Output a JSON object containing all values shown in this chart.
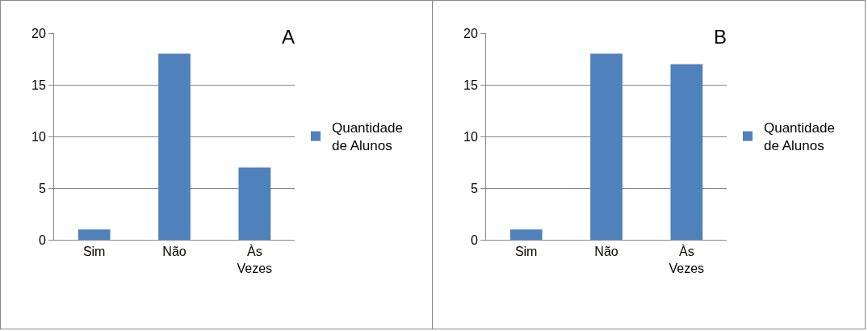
{
  "chart_data": [
    {
      "type": "bar",
      "title": "A",
      "categories": [
        "Sim",
        "Não",
        "Às Vezes"
      ],
      "series": [
        {
          "name": "Quantidade de Alunos",
          "color": "#4f81bd",
          "values": [
            1,
            18,
            7
          ]
        }
      ],
      "ylim": [
        0,
        20
      ],
      "yticks": [
        0,
        5,
        10,
        15,
        20
      ],
      "grid": "y",
      "legend": "right"
    },
    {
      "type": "bar",
      "title": "B",
      "categories": [
        "Sim",
        "Não",
        "Às Vezes"
      ],
      "series": [
        {
          "name": "Quantidade de Alunos",
          "color": "#4f81bd",
          "values": [
            1,
            18,
            17
          ]
        }
      ],
      "ylim": [
        0,
        20
      ],
      "yticks": [
        0,
        5,
        10,
        15,
        20
      ],
      "grid": "y",
      "legend": "right"
    }
  ]
}
